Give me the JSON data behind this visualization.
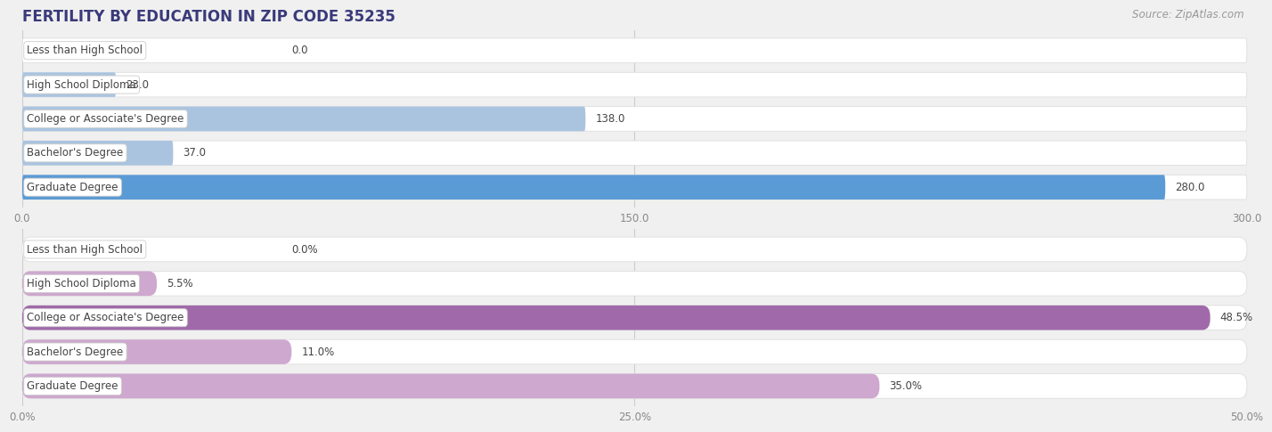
{
  "title": "FERTILITY BY EDUCATION IN ZIP CODE 35235",
  "source": "Source: ZipAtlas.com",
  "top_chart": {
    "categories": [
      "Less than High School",
      "High School Diploma",
      "College or Associate's Degree",
      "Bachelor's Degree",
      "Graduate Degree"
    ],
    "values": [
      0.0,
      23.0,
      138.0,
      37.0,
      280.0
    ],
    "xlim": [
      0,
      300
    ],
    "xticks": [
      0.0,
      150.0,
      300.0
    ],
    "xtick_labels": [
      "0.0",
      "150.0",
      "300.0"
    ],
    "bar_color_normal": "#aac4e0",
    "bar_color_highlight": "#5b9bd5",
    "highlight_index": 4
  },
  "bottom_chart": {
    "categories": [
      "Less than High School",
      "High School Diploma",
      "College or Associate's Degree",
      "Bachelor's Degree",
      "Graduate Degree"
    ],
    "values": [
      0.0,
      5.5,
      48.5,
      11.0,
      35.0
    ],
    "xlim": [
      0,
      50
    ],
    "xticks": [
      0.0,
      25.0,
      50.0
    ],
    "xtick_labels": [
      "0.0%",
      "25.0%",
      "50.0%"
    ],
    "bar_color_normal": "#cea8ce",
    "bar_color_highlight": "#a06aaa",
    "highlight_index": 2
  },
  "label_fontsize": 8.5,
  "value_fontsize": 8.5,
  "title_fontsize": 12,
  "source_fontsize": 8.5,
  "bg_color": "#f0f0f0",
  "bar_bg_color": "#ffffff",
  "bar_height": 0.72,
  "label_text_color": "#444444",
  "tick_label_color": "#888888",
  "title_color": "#3a3a7a",
  "grid_color": "#cccccc",
  "separator_color": "#cccccc"
}
